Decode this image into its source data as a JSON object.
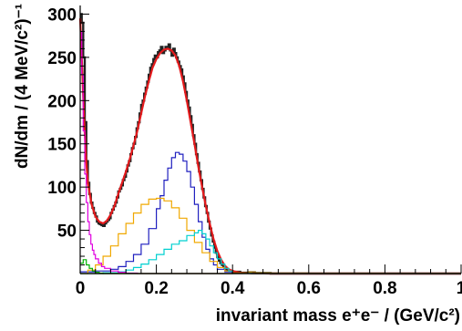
{
  "chart_data": {
    "type": "line",
    "title": "",
    "xlabel": "invariant mass e⁺e⁻ / (GeV/c²)",
    "ylabel": "dN/dm / (4 MeV/c²)⁻¹",
    "xlim": [
      0,
      1
    ],
    "ylim": [
      0,
      310
    ],
    "x_ticks": [
      "0",
      "0.2",
      "0.4",
      "0.6",
      "0.8",
      "1"
    ],
    "y_ticks": [
      "50",
      "100",
      "150",
      "200",
      "250",
      "300"
    ],
    "grid": false,
    "legend": "none",
    "series": [
      {
        "color": "#222222",
        "style": "histogram-data",
        "points": [
          [
            0.0,
            300
          ],
          [
            0.004,
            290
          ],
          [
            0.008,
            250
          ],
          [
            0.012,
            175
          ],
          [
            0.016,
            130
          ],
          [
            0.02,
            105
          ],
          [
            0.024,
            92
          ],
          [
            0.028,
            82
          ],
          [
            0.032,
            76
          ],
          [
            0.036,
            70
          ],
          [
            0.04,
            66
          ],
          [
            0.044,
            60
          ],
          [
            0.048,
            58
          ],
          [
            0.052,
            57
          ],
          [
            0.056,
            56
          ],
          [
            0.06,
            55
          ],
          [
            0.064,
            58
          ],
          [
            0.068,
            60
          ],
          [
            0.072,
            62
          ],
          [
            0.076,
            64
          ],
          [
            0.08,
            70
          ],
          [
            0.084,
            74
          ],
          [
            0.088,
            78
          ],
          [
            0.092,
            82
          ],
          [
            0.096,
            88
          ],
          [
            0.1,
            95
          ],
          [
            0.104,
            98
          ],
          [
            0.108,
            102
          ],
          [
            0.112,
            108
          ],
          [
            0.116,
            112
          ],
          [
            0.12,
            118
          ],
          [
            0.124,
            125
          ],
          [
            0.128,
            130
          ],
          [
            0.132,
            138
          ],
          [
            0.136,
            145
          ],
          [
            0.14,
            150
          ],
          [
            0.144,
            158
          ],
          [
            0.148,
            168
          ],
          [
            0.152,
            175
          ],
          [
            0.156,
            185
          ],
          [
            0.16,
            195
          ],
          [
            0.164,
            200
          ],
          [
            0.168,
            208
          ],
          [
            0.172,
            215
          ],
          [
            0.176,
            222
          ],
          [
            0.18,
            230
          ],
          [
            0.184,
            238
          ],
          [
            0.188,
            242
          ],
          [
            0.192,
            248
          ],
          [
            0.196,
            252
          ],
          [
            0.2,
            250
          ],
          [
            0.204,
            256
          ],
          [
            0.208,
            258
          ],
          [
            0.212,
            262
          ],
          [
            0.216,
            255
          ],
          [
            0.22,
            258
          ],
          [
            0.224,
            262
          ],
          [
            0.228,
            260
          ],
          [
            0.232,
            265
          ],
          [
            0.236,
            258
          ],
          [
            0.24,
            252
          ],
          [
            0.244,
            260
          ],
          [
            0.248,
            255
          ],
          [
            0.252,
            250
          ],
          [
            0.256,
            245
          ],
          [
            0.26,
            240
          ],
          [
            0.264,
            236
          ],
          [
            0.268,
            228
          ],
          [
            0.272,
            220
          ],
          [
            0.276,
            210
          ],
          [
            0.28,
            200
          ],
          [
            0.284,
            192
          ],
          [
            0.288,
            182
          ],
          [
            0.292,
            172
          ],
          [
            0.296,
            160
          ],
          [
            0.3,
            150
          ],
          [
            0.304,
            138
          ],
          [
            0.308,
            128
          ],
          [
            0.312,
            118
          ],
          [
            0.316,
            108
          ],
          [
            0.32,
            98
          ],
          [
            0.324,
            88
          ],
          [
            0.328,
            78
          ],
          [
            0.332,
            70
          ],
          [
            0.336,
            60
          ],
          [
            0.34,
            52
          ],
          [
            0.344,
            44
          ],
          [
            0.348,
            37
          ],
          [
            0.352,
            30
          ],
          [
            0.356,
            24
          ],
          [
            0.36,
            19
          ],
          [
            0.364,
            15
          ],
          [
            0.368,
            12
          ],
          [
            0.372,
            10
          ],
          [
            0.376,
            8
          ],
          [
            0.38,
            6
          ],
          [
            0.384,
            5
          ],
          [
            0.388,
            4
          ],
          [
            0.392,
            3
          ],
          [
            0.4,
            2
          ],
          [
            0.42,
            1
          ],
          [
            0.45,
            0.5
          ],
          [
            0.5,
            0
          ],
          [
            1.0,
            0
          ]
        ]
      },
      {
        "color": "#e41a1c",
        "style": "line",
        "points": [
          [
            0.0,
            295
          ],
          [
            0.005,
            240
          ],
          [
            0.01,
            180
          ],
          [
            0.015,
            135
          ],
          [
            0.02,
            105
          ],
          [
            0.03,
            80
          ],
          [
            0.04,
            66
          ],
          [
            0.05,
            60
          ],
          [
            0.06,
            58
          ],
          [
            0.07,
            61
          ],
          [
            0.08,
            68
          ],
          [
            0.09,
            78
          ],
          [
            0.1,
            92
          ],
          [
            0.11,
            105
          ],
          [
            0.12,
            118
          ],
          [
            0.13,
            132
          ],
          [
            0.14,
            148
          ],
          [
            0.15,
            165
          ],
          [
            0.16,
            185
          ],
          [
            0.17,
            205
          ],
          [
            0.18,
            222
          ],
          [
            0.19,
            238
          ],
          [
            0.2,
            248
          ],
          [
            0.21,
            255
          ],
          [
            0.22,
            259
          ],
          [
            0.23,
            260
          ],
          [
            0.24,
            258
          ],
          [
            0.25,
            252
          ],
          [
            0.26,
            240
          ],
          [
            0.27,
            222
          ],
          [
            0.28,
            200
          ],
          [
            0.29,
            175
          ],
          [
            0.3,
            150
          ],
          [
            0.31,
            124
          ],
          [
            0.32,
            100
          ],
          [
            0.33,
            78
          ],
          [
            0.34,
            58
          ],
          [
            0.35,
            40
          ],
          [
            0.36,
            26
          ],
          [
            0.37,
            16
          ],
          [
            0.38,
            9
          ],
          [
            0.39,
            5
          ],
          [
            0.4,
            3
          ],
          [
            0.42,
            1
          ],
          [
            0.45,
            0.3
          ],
          [
            0.5,
            0
          ],
          [
            1.0,
            0
          ]
        ]
      },
      {
        "color": "#1f1fbf",
        "style": "histogram",
        "points": [
          [
            0.0,
            2
          ],
          [
            0.04,
            3
          ],
          [
            0.08,
            5
          ],
          [
            0.1,
            8
          ],
          [
            0.12,
            14
          ],
          [
            0.14,
            22
          ],
          [
            0.16,
            34
          ],
          [
            0.18,
            52
          ],
          [
            0.2,
            75
          ],
          [
            0.21,
            90
          ],
          [
            0.22,
            108
          ],
          [
            0.23,
            122
          ],
          [
            0.24,
            134
          ],
          [
            0.25,
            140
          ],
          [
            0.26,
            138
          ],
          [
            0.27,
            130
          ],
          [
            0.28,
            118
          ],
          [
            0.29,
            100
          ],
          [
            0.3,
            80
          ],
          [
            0.31,
            60
          ],
          [
            0.32,
            42
          ],
          [
            0.33,
            28
          ],
          [
            0.34,
            17
          ],
          [
            0.35,
            10
          ],
          [
            0.36,
            5
          ],
          [
            0.38,
            2
          ],
          [
            0.4,
            0.5
          ],
          [
            0.45,
            0
          ],
          [
            1.0,
            0
          ]
        ]
      },
      {
        "color": "#f0a800",
        "style": "histogram",
        "points": [
          [
            0.0,
            0
          ],
          [
            0.02,
            4
          ],
          [
            0.04,
            10
          ],
          [
            0.06,
            20
          ],
          [
            0.08,
            32
          ],
          [
            0.1,
            46
          ],
          [
            0.12,
            58
          ],
          [
            0.14,
            70
          ],
          [
            0.16,
            80
          ],
          [
            0.18,
            86
          ],
          [
            0.2,
            87
          ],
          [
            0.22,
            84
          ],
          [
            0.24,
            76
          ],
          [
            0.26,
            64
          ],
          [
            0.28,
            50
          ],
          [
            0.3,
            36
          ],
          [
            0.32,
            24
          ],
          [
            0.34,
            14
          ],
          [
            0.36,
            7
          ],
          [
            0.38,
            3
          ],
          [
            0.4,
            1
          ],
          [
            0.45,
            0
          ],
          [
            1.0,
            0
          ]
        ]
      },
      {
        "color": "#00d0d0",
        "style": "histogram",
        "points": [
          [
            0.0,
            0
          ],
          [
            0.06,
            1
          ],
          [
            0.1,
            2
          ],
          [
            0.12,
            4
          ],
          [
            0.14,
            7
          ],
          [
            0.16,
            11
          ],
          [
            0.18,
            16
          ],
          [
            0.2,
            22
          ],
          [
            0.22,
            28
          ],
          [
            0.24,
            34
          ],
          [
            0.26,
            38
          ],
          [
            0.28,
            44
          ],
          [
            0.3,
            47
          ],
          [
            0.31,
            50
          ],
          [
            0.32,
            46
          ],
          [
            0.33,
            40
          ],
          [
            0.34,
            32
          ],
          [
            0.35,
            24
          ],
          [
            0.36,
            17
          ],
          [
            0.37,
            11
          ],
          [
            0.38,
            6
          ],
          [
            0.39,
            3
          ],
          [
            0.4,
            1
          ],
          [
            0.42,
            0.3
          ],
          [
            0.45,
            0
          ],
          [
            1.0,
            0
          ]
        ]
      },
      {
        "color": "#e000e0",
        "style": "histogram",
        "points": [
          [
            0.0,
            280
          ],
          [
            0.004,
            230
          ],
          [
            0.008,
            165
          ],
          [
            0.012,
            115
          ],
          [
            0.016,
            82
          ],
          [
            0.02,
            60
          ],
          [
            0.024,
            45
          ],
          [
            0.028,
            34
          ],
          [
            0.032,
            27
          ],
          [
            0.036,
            22
          ],
          [
            0.04,
            17
          ],
          [
            0.048,
            12
          ],
          [
            0.056,
            8
          ],
          [
            0.064,
            6
          ],
          [
            0.08,
            3
          ],
          [
            0.1,
            1.5
          ],
          [
            0.12,
            0.5
          ],
          [
            0.15,
            0
          ],
          [
            1.0,
            0
          ]
        ]
      },
      {
        "color": "#00b000",
        "style": "histogram",
        "points": [
          [
            0.0,
            12
          ],
          [
            0.008,
            16
          ],
          [
            0.016,
            10
          ],
          [
            0.024,
            6
          ],
          [
            0.032,
            3
          ],
          [
            0.04,
            1.5
          ],
          [
            0.05,
            0.5
          ],
          [
            0.06,
            0
          ],
          [
            1.0,
            0
          ]
        ]
      },
      {
        "color": "#7a5a00",
        "style": "histogram",
        "points": [
          [
            0.0,
            0
          ],
          [
            0.3,
            0
          ],
          [
            0.4,
            1
          ],
          [
            0.44,
            2
          ],
          [
            0.46,
            1
          ],
          [
            0.5,
            0.5
          ],
          [
            0.6,
            0.3
          ],
          [
            0.8,
            0.2
          ],
          [
            1.0,
            0.2
          ]
        ]
      }
    ]
  }
}
